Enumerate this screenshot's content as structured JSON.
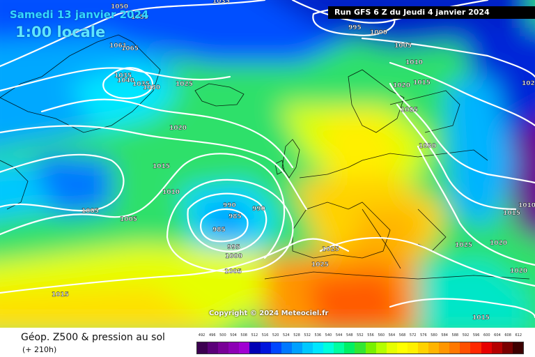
{
  "header": {
    "date_label": "Samedi 13 janvier 2024",
    "time_label": "1:00 locale",
    "run_label": "Run GFS 6 Z du Jeudi 4 janvier 2024"
  },
  "copyright": "Copyright © 2024 Meteociel.fr",
  "footer": {
    "title": "Géop. Z500 & pression au sol",
    "subtitle": "(+ 210h)"
  },
  "isobar_labels": [
    "1050",
    "1065",
    "1061",
    "1035",
    "1040",
    "1035",
    "1030",
    "1025",
    "1020",
    "1015",
    "1010",
    "1005",
    "1005",
    "990",
    "985",
    "990",
    "985",
    "995",
    "1000",
    "1005",
    "1015",
    "995",
    "1000",
    "1005",
    "1010",
    "1020",
    "1015",
    "1025",
    "1030",
    "1025",
    "1025",
    "1025",
    "1020",
    "1020",
    "1015",
    "1010",
    "1015",
    "102",
    "1055",
    "1035"
  ],
  "scale": {
    "labels": [
      "492",
      "496",
      "500",
      "504",
      "508",
      "512",
      "516",
      "520",
      "524",
      "528",
      "532",
      "536",
      "540",
      "544",
      "548",
      "552",
      "556",
      "560",
      "564",
      "568",
      "572",
      "576",
      "580",
      "584",
      "588",
      "592",
      "596",
      "600",
      "604",
      "608",
      "612"
    ],
    "colors": [
      "#3c0050",
      "#5a0078",
      "#780096",
      "#8c00b4",
      "#a000d2",
      "#0000b4",
      "#0014dc",
      "#0046ff",
      "#0078ff",
      "#00a0ff",
      "#00c8ff",
      "#00e6ff",
      "#00ffdc",
      "#00ffa0",
      "#00f064",
      "#32e632",
      "#78f000",
      "#b4ff00",
      "#e6ff00",
      "#ffff00",
      "#fff000",
      "#ffd200",
      "#ffb400",
      "#ff9600",
      "#ff7800",
      "#ff5000",
      "#ff2800",
      "#e60000",
      "#b40000",
      "#780000",
      "#3c0000"
    ]
  }
}
